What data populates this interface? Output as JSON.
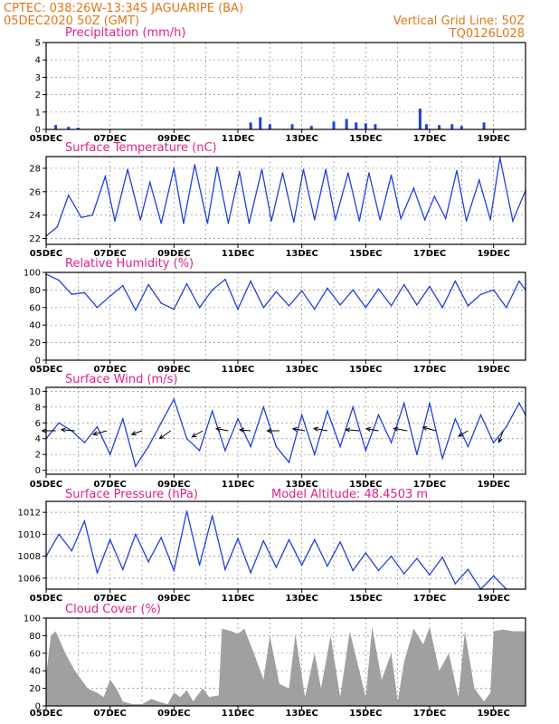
{
  "header": {
    "line1_left": "CPTEC:   038:26W-13:34S   JAGUARIPE (BA)",
    "line2_left": "05DEC2020 50Z (GMT)",
    "line1_right": "Vertical Grid Line: 50Z",
    "line2_right": "TQ0126L028"
  },
  "colors": {
    "line": "#2040e0",
    "title": "#e0208c",
    "header": "#e07818",
    "cloud": "#a0a0a0",
    "wind_arrow": "#000000"
  },
  "x_axis": {
    "days": [
      "05DEC",
      "07DEC",
      "09DEC",
      "11DEC",
      "13DEC",
      "15DEC",
      "17DEC",
      "19DEC"
    ],
    "start_day": 5,
    "end_day": 20
  },
  "chart_data": [
    {
      "id": "precip",
      "type": "bar",
      "title": "Precipitation (mm/h)",
      "ylim": [
        0,
        5
      ],
      "yticks": [
        0,
        1,
        2,
        3,
        4,
        5
      ],
      "x": [
        5.3,
        5.7,
        6.0,
        11.4,
        11.7,
        12.0,
        12.7,
        13.3,
        14.0,
        14.4,
        14.7,
        15.0,
        15.3,
        16.7,
        16.9,
        17.3,
        17.7,
        18.0,
        18.7
      ],
      "values": [
        0.25,
        0.15,
        0.1,
        0.4,
        0.7,
        0.3,
        0.3,
        0.2,
        0.45,
        0.6,
        0.4,
        0.35,
        0.3,
        1.2,
        0.3,
        0.25,
        0.3,
        0.2,
        0.4
      ]
    },
    {
      "id": "temp",
      "type": "line",
      "title": "Surface Temperature (nC)",
      "ylim": [
        21.5,
        29
      ],
      "yticks": [
        22,
        24,
        26,
        28
      ],
      "x": [
        5.0,
        5.35,
        5.7,
        6.1,
        6.45,
        6.85,
        7.15,
        7.55,
        7.95,
        8.25,
        8.6,
        9.0,
        9.3,
        9.65,
        10.05,
        10.35,
        10.7,
        11.05,
        11.35,
        11.75,
        12.05,
        12.4,
        12.75,
        13.05,
        13.4,
        13.75,
        14.05,
        14.45,
        14.8,
        15.1,
        15.45,
        15.8,
        16.1,
        16.5,
        16.85,
        17.15,
        17.5,
        17.85,
        18.15,
        18.55,
        18.9,
        19.2,
        19.6,
        20.0
      ],
      "values": [
        22.2,
        23.0,
        25.7,
        23.8,
        24.0,
        27.3,
        23.5,
        27.9,
        23.6,
        26.8,
        23.3,
        28.0,
        23.3,
        28.3,
        23.3,
        28.1,
        23.3,
        27.7,
        23.3,
        27.9,
        23.5,
        27.6,
        23.4,
        27.9,
        23.6,
        27.9,
        23.6,
        27.6,
        23.5,
        27.6,
        23.6,
        27.4,
        23.7,
        26.3,
        23.6,
        25.6,
        23.7,
        27.8,
        23.5,
        27.0,
        23.6,
        28.9,
        23.5,
        26.1
      ]
    },
    {
      "id": "rh",
      "type": "line",
      "title": "Relative Humidity (%)",
      "ylim": [
        0,
        100
      ],
      "yticks": [
        0,
        20,
        40,
        60,
        80,
        100
      ],
      "x": [
        5.0,
        5.4,
        5.8,
        6.2,
        6.6,
        7.0,
        7.4,
        7.8,
        8.2,
        8.6,
        9.0,
        9.4,
        9.8,
        10.2,
        10.6,
        11.0,
        11.4,
        11.8,
        12.2,
        12.6,
        13.0,
        13.4,
        13.8,
        14.2,
        14.6,
        15.0,
        15.4,
        15.8,
        16.2,
        16.6,
        17.0,
        17.4,
        17.8,
        18.2,
        18.6,
        19.0,
        19.4,
        19.8,
        20.0
      ],
      "values": [
        98,
        91,
        75,
        77,
        60,
        73,
        85,
        57,
        86,
        65,
        58,
        87,
        60,
        80,
        92,
        58,
        90,
        60,
        78,
        62,
        79,
        58,
        82,
        63,
        80,
        60,
        81,
        62,
        86,
        63,
        84,
        60,
        90,
        62,
        75,
        80,
        60,
        90,
        80
      ]
    },
    {
      "id": "wind",
      "type": "line",
      "title": "Surface Wind (m/s)",
      "ylim": [
        -0.5,
        10.5
      ],
      "yticks": [
        0,
        2,
        4,
        6,
        8,
        10
      ],
      "x": [
        5.0,
        5.4,
        5.8,
        6.2,
        6.6,
        7.0,
        7.4,
        7.8,
        8.2,
        8.6,
        9.0,
        9.4,
        9.8,
        10.2,
        10.6,
        11.0,
        11.4,
        11.8,
        12.2,
        12.6,
        13.0,
        13.4,
        13.8,
        14.2,
        14.6,
        15.0,
        15.4,
        15.8,
        16.2,
        16.6,
        17.0,
        17.4,
        17.8,
        18.2,
        18.6,
        19.0,
        19.4,
        19.8,
        20.0
      ],
      "values": [
        4.0,
        6.0,
        5.0,
        3.5,
        5.5,
        2.0,
        6.5,
        0.5,
        3.0,
        6.0,
        9.0,
        4.0,
        2.5,
        7.5,
        2.5,
        6.5,
        3.0,
        8.0,
        3.0,
        1.0,
        7.0,
        2.0,
        7.5,
        3.0,
        8.0,
        2.5,
        7.0,
        3.5,
        8.5,
        2.0,
        8.5,
        1.5,
        6.5,
        3.0,
        7.0,
        3.5,
        5.5,
        8.5,
        7.0
      ],
      "arrows": [
        {
          "x": 5.3,
          "dir": 90,
          "speed": 5.0
        },
        {
          "x": 5.9,
          "dir": 95,
          "speed": 5.0
        },
        {
          "x": 6.9,
          "dir": 75,
          "speed": 5.2
        },
        {
          "x": 8.0,
          "dir": 70,
          "speed": 4.0
        },
        {
          "x": 8.9,
          "dir": 55,
          "speed": 5.0
        },
        {
          "x": 9.9,
          "dir": 60,
          "speed": 4.5
        },
        {
          "x": 10.7,
          "dir": 100,
          "speed": 4.5
        },
        {
          "x": 11.4,
          "dir": 95,
          "speed": 4.0
        },
        {
          "x": 12.3,
          "dir": 90,
          "speed": 4.5
        },
        {
          "x": 13.1,
          "dir": 100,
          "speed": 4.5
        },
        {
          "x": 13.8,
          "dir": 100,
          "speed": 5.0
        },
        {
          "x": 14.8,
          "dir": 95,
          "speed": 5.0
        },
        {
          "x": 15.4,
          "dir": 100,
          "speed": 4.5
        },
        {
          "x": 16.3,
          "dir": 100,
          "speed": 5.0
        },
        {
          "x": 17.2,
          "dir": 105,
          "speed": 5.0
        },
        {
          "x": 18.2,
          "dir": 60,
          "speed": 4.0
        },
        {
          "x": 19.3,
          "dir": 20,
          "speed": 4.5
        }
      ]
    },
    {
      "id": "pressure",
      "type": "line",
      "title": "Surface Pressure (hPa)",
      "annotation": "Model Altitude: 48.4503 m",
      "ylim": [
        1005,
        1013
      ],
      "yticks": [
        1006,
        1008,
        1010,
        1012
      ],
      "x": [
        5.0,
        5.4,
        5.8,
        6.2,
        6.6,
        7.0,
        7.4,
        7.8,
        8.2,
        8.6,
        9.0,
        9.4,
        9.8,
        10.2,
        10.6,
        11.0,
        11.4,
        11.8,
        12.2,
        12.6,
        13.0,
        13.4,
        13.8,
        14.2,
        14.6,
        15.0,
        15.4,
        15.8,
        16.2,
        16.6,
        17.0,
        17.4,
        17.8,
        18.2,
        18.6,
        19.0,
        19.4
      ],
      "values": [
        1008.0,
        1010.0,
        1008.5,
        1011.2,
        1006.5,
        1009.5,
        1006.8,
        1010.0,
        1007.5,
        1009.7,
        1006.7,
        1012.1,
        1007.2,
        1011.7,
        1006.8,
        1009.6,
        1006.5,
        1009.4,
        1007.0,
        1009.5,
        1007.2,
        1009.5,
        1007.1,
        1009.3,
        1006.7,
        1008.3,
        1006.7,
        1008.0,
        1006.4,
        1007.8,
        1006.3,
        1007.9,
        1005.5,
        1006.8,
        1005.0,
        1006.2,
        1005.0
      ]
    },
    {
      "id": "cloud",
      "type": "area",
      "title": "Cloud Cover (%)",
      "ylim": [
        0,
        100
      ],
      "yticks": [
        0,
        20,
        40,
        60,
        80,
        100
      ],
      "x": [
        5.0,
        5.15,
        5.3,
        5.6,
        5.9,
        6.1,
        6.3,
        6.6,
        6.8,
        7.0,
        7.2,
        7.4,
        7.7,
        8.0,
        8.3,
        8.5,
        8.8,
        9.0,
        9.2,
        9.4,
        9.6,
        9.9,
        10.1,
        10.4,
        10.5,
        10.8,
        11.0,
        11.2,
        11.5,
        11.8,
        12.0,
        12.3,
        12.6,
        12.8,
        13.1,
        13.4,
        13.6,
        13.9,
        14.2,
        14.5,
        14.8,
        15.0,
        15.2,
        15.5,
        15.8,
        16.0,
        16.2,
        16.5,
        16.8,
        17.0,
        17.3,
        17.6,
        17.9,
        18.1,
        18.4,
        18.7,
        18.9,
        19.0,
        19.3,
        19.6,
        20.0
      ],
      "values": [
        35,
        80,
        85,
        60,
        40,
        30,
        20,
        15,
        10,
        30,
        20,
        5,
        2,
        2,
        8,
        5,
        2,
        15,
        10,
        18,
        5,
        20,
        10,
        12,
        88,
        85,
        82,
        88,
        60,
        30,
        80,
        25,
        20,
        82,
        10,
        60,
        20,
        80,
        10,
        85,
        40,
        10,
        90,
        30,
        60,
        5,
        50,
        88,
        70,
        90,
        40,
        60,
        10,
        85,
        20,
        5,
        15,
        85,
        87,
        85,
        85
      ]
    }
  ]
}
